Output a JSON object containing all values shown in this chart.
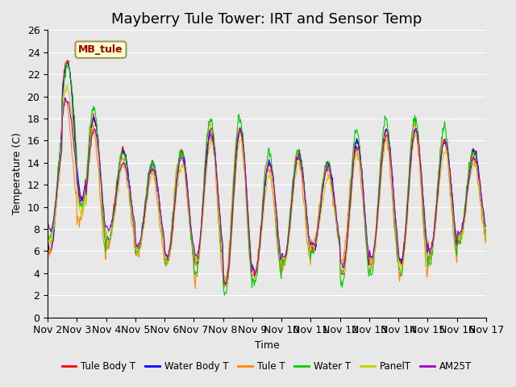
{
  "title": "Mayberry Tule Tower: IRT and Sensor Temp",
  "xlabel": "Time",
  "ylabel": "Temperature (C)",
  "ylim": [
    0,
    26
  ],
  "yticks": [
    0,
    2,
    4,
    6,
    8,
    10,
    12,
    14,
    16,
    18,
    20,
    22,
    24,
    26
  ],
  "xlim_start": 0,
  "xlim_end": 15,
  "xtick_labels": [
    "Nov 2",
    "Nov 3",
    "Nov 4",
    "Nov 5",
    "Nov 6",
    "Nov 7",
    "Nov 8",
    "Nov 9",
    "Nov 10",
    "Nov 11",
    "Nov 12",
    "Nov 13",
    "Nov 14",
    "Nov 15",
    "Nov 16",
    "Nov 17"
  ],
  "series_names": [
    "Tule Body T",
    "Water Body T",
    "Tule T",
    "Water T",
    "PanelT",
    "AM25T"
  ],
  "series_colors": [
    "#ff0000",
    "#0000ff",
    "#ff8800",
    "#00cc00",
    "#cccc00",
    "#9900cc"
  ],
  "background_color": "#e8e8e8",
  "grid_color": "#ffffff",
  "title_fontsize": 13,
  "label_fontsize": 9,
  "tick_fontsize": 9,
  "legend_box_color": "#ffffcc",
  "legend_box_edge": "#999966",
  "legend_text": "MB_tule",
  "legend_text_color": "#990000"
}
